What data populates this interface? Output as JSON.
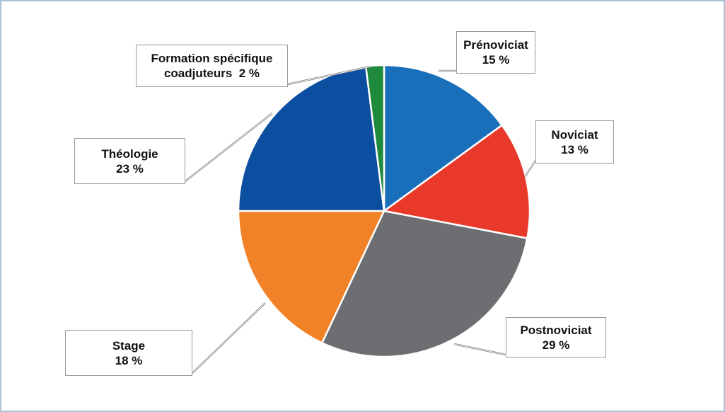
{
  "chart_data": {
    "type": "pie",
    "categories": [
      "Prénoviciat",
      "Noviciat",
      "Postnoviciat",
      "Stage",
      "Théologie",
      "Formation spécifique coadjuteurs"
    ],
    "values": [
      15,
      13,
      29,
      18,
      23,
      2
    ],
    "value_labels": [
      "15 %",
      "13 %",
      "29 %",
      "18 %",
      "23 %",
      "2 %"
    ],
    "colors": [
      "#1a6fba",
      "#e8392a",
      "#6d6e71",
      "#f28227",
      "#0c4fa0",
      "#1f8a3c"
    ]
  }
}
